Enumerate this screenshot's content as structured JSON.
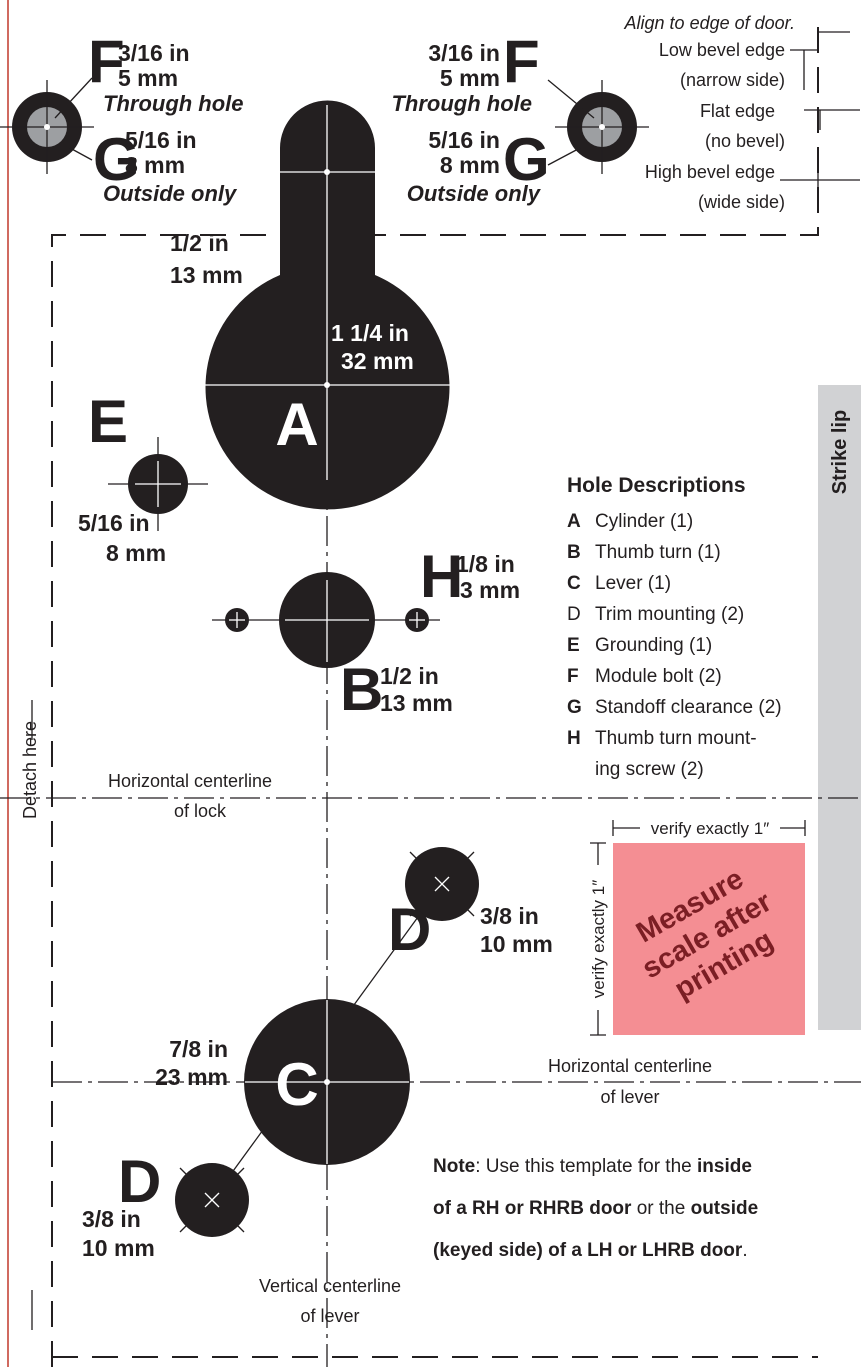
{
  "template": {
    "module_hole_left": {
      "letter_f": "F",
      "f_in": "3/16 in",
      "f_mm": "5 mm",
      "f_note": "Through hole",
      "letter_g": "G",
      "g_in": "5/16 in",
      "g_mm": "8 mm",
      "g_note": "Outside only"
    },
    "module_hole_right": {
      "letter_f": "F",
      "f_in": "3/16 in",
      "f_mm": "5 mm",
      "f_note": "Through hole",
      "letter_g": "G",
      "g_in": "5/16 in",
      "g_mm": "8 mm",
      "g_note": "Outside only"
    },
    "edge_legend": {
      "title": "Align to edge of door.",
      "items": [
        [
          "Low bevel edge",
          "(narrow side)"
        ],
        [
          "Flat edge",
          "(no bevel)"
        ],
        [
          "High bevel edge",
          "(wide side)"
        ]
      ]
    },
    "hole_a": {
      "letter": "A",
      "slot_in": "1/2 in",
      "slot_mm": "13 mm",
      "dia_in": "1 1/4 in",
      "dia_mm": "32 mm"
    },
    "hole_e": {
      "letter": "E",
      "dia_in": "5/16 in",
      "dia_mm": "8 mm"
    },
    "hole_h": {
      "letter": "H",
      "dia_in": "1/8 in",
      "dia_mm": "3 mm"
    },
    "hole_b": {
      "letter": "B",
      "dia_in": "1/2 in",
      "dia_mm": "13 mm"
    },
    "hole_descriptions": {
      "title": "Hole Descriptions",
      "items": [
        {
          "letter": "A",
          "lines": [
            "Cylinder (1)"
          ]
        },
        {
          "letter": "B",
          "lines": [
            "Thumb turn (1)"
          ]
        },
        {
          "letter": "C",
          "lines": [
            "Lever (1)"
          ]
        },
        {
          "letter": "D",
          "lines": [
            "Trim mounting (2)"
          ]
        },
        {
          "letter": "E",
          "lines": [
            "Grounding (1)"
          ]
        },
        {
          "letter": "F",
          "lines": [
            "Module bolt (2)"
          ]
        },
        {
          "letter": "G",
          "lines": [
            "Standoff clearance (2)"
          ]
        },
        {
          "letter": "H",
          "lines": [
            "Thumb turn mount-",
            "ing screw (2)"
          ]
        }
      ]
    },
    "strike_lip": "Strike lip",
    "detach": "Detach here",
    "lock_centerline": [
      "Horizontal centerline",
      "of lock"
    ],
    "scale_check": {
      "verify_top": "verify exactly 1″",
      "verify_side": "verify exactly 1″",
      "message": [
        "Measure",
        "scale after",
        "printing"
      ]
    },
    "hole_d_upper": {
      "letter": "D",
      "dia_in": "3/8 in",
      "dia_mm": "10 mm"
    },
    "hole_c": {
      "letter": "C",
      "dia_in": "7/8 in",
      "dia_mm": "23 mm"
    },
    "hole_d_lower": {
      "letter": "D",
      "dia_in": "3/8 in",
      "dia_mm": "10 mm"
    },
    "lever_centerline": [
      "Horizontal centerline",
      "of lever"
    ],
    "vertical_centerline": [
      "Vertical centerline",
      "of lever"
    ],
    "note": [
      [
        "Note",
        ": Use this template for the ",
        "inside"
      ],
      [
        "of a RH or RHRB door",
        " or the ",
        "outside"
      ],
      [
        "(keyed side) of a LH or LHRB door",
        "."
      ]
    ]
  }
}
